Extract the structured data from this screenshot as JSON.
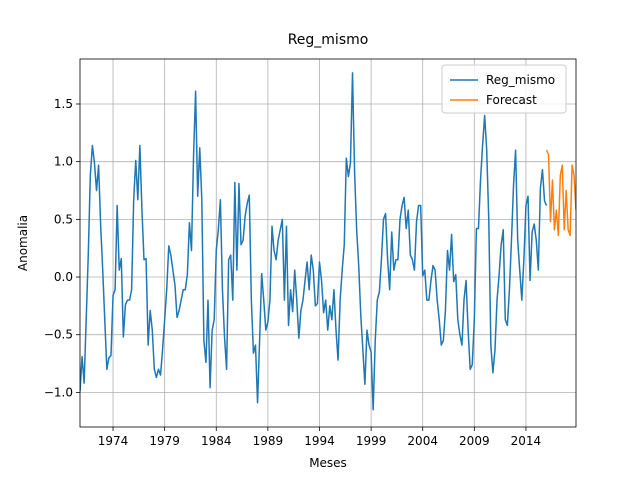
{
  "chart_data": {
    "type": "line",
    "title": "Reg_mismo",
    "x_label": "Meses",
    "y_label": "Anomalia",
    "xlim": [
      1970.8,
      2018.85
    ],
    "xticks": [
      1974,
      1979,
      1984,
      1989,
      1994,
      1999,
      2004,
      2009,
      2014
    ],
    "ylim": [
      -1.3,
      1.89
    ],
    "yticks": [
      {
        "value": -1.0,
        "label": "−1.0"
      },
      {
        "value": -0.5,
        "label": "−0.5"
      },
      {
        "value": 0.0,
        "label": "0.0"
      },
      {
        "value": 0.5,
        "label": "0.5"
      },
      {
        "value": 1.0,
        "label": "1.0"
      },
      {
        "value": 1.5,
        "label": "1.5"
      }
    ],
    "grid": true,
    "legend": "upper right",
    "series": [
      {
        "name": "Reg_mismo",
        "color": "#1f77b4",
        "x": [
          1970.8,
          1971.0,
          1971.2,
          1971.4,
          1971.6,
          1971.8,
          1972.0,
          1972.2,
          1972.4,
          1972.6,
          1972.8,
          1973.0,
          1973.2,
          1973.4,
          1973.6,
          1973.8,
          1974.0,
          1974.2,
          1974.4,
          1974.6,
          1974.8,
          1975.0,
          1975.2,
          1975.4,
          1975.6,
          1975.8,
          1976.0,
          1976.2,
          1976.4,
          1976.6,
          1976.8,
          1977.0,
          1977.2,
          1977.4,
          1977.6,
          1977.8,
          1978.0,
          1978.2,
          1978.4,
          1978.6,
          1978.8,
          1979.0,
          1979.2,
          1979.4,
          1979.6,
          1979.8,
          1980.0,
          1980.2,
          1980.4,
          1980.6,
          1980.8,
          1981.0,
          1981.2,
          1981.4,
          1981.6,
          1981.8,
          1982.0,
          1982.2,
          1982.4,
          1982.6,
          1982.8,
          1983.0,
          1983.2,
          1983.4,
          1983.6,
          1983.8,
          1984.0,
          1984.2,
          1984.4,
          1984.6,
          1984.8,
          1985.0,
          1985.2,
          1985.4,
          1985.6,
          1985.8,
          1986.0,
          1986.2,
          1986.4,
          1986.6,
          1986.8,
          1987.0,
          1987.2,
          1987.4,
          1987.6,
          1987.8,
          1988.0,
          1988.2,
          1988.4,
          1988.6,
          1988.8,
          1989.0,
          1989.2,
          1989.4,
          1989.6,
          1989.8,
          1990.0,
          1990.2,
          1990.4,
          1990.6,
          1990.8,
          1991.0,
          1991.2,
          1991.4,
          1991.6,
          1991.8,
          1992.0,
          1992.2,
          1992.4,
          1992.6,
          1992.8,
          1993.0,
          1993.2,
          1993.4,
          1993.6,
          1993.8,
          1994.0,
          1994.2,
          1994.4,
          1994.6,
          1994.8,
          1995.0,
          1995.2,
          1995.4,
          1995.6,
          1995.8,
          1996.0,
          1996.2,
          1996.4,
          1996.6,
          1996.8,
          1997.0,
          1997.2,
          1997.4,
          1997.6,
          1997.8,
          1998.0,
          1998.2,
          1998.4,
          1998.6,
          1998.8,
          1999.0,
          1999.2,
          1999.4,
          1999.6,
          1999.8,
          2000.0,
          2000.2,
          2000.4,
          2000.6,
          2000.8,
          2001.0,
          2001.2,
          2001.4,
          2001.6,
          2001.8,
          2002.0,
          2002.2,
          2002.4,
          2002.6,
          2002.8,
          2003.0,
          2003.2,
          2003.4,
          2003.6,
          2003.8,
          2004.0,
          2004.2,
          2004.4,
          2004.6,
          2004.8,
          2005.0,
          2005.2,
          2005.4,
          2005.6,
          2005.8,
          2006.0,
          2006.2,
          2006.4,
          2006.6,
          2006.8,
          2007.0,
          2007.2,
          2007.4,
          2007.6,
          2007.8,
          2008.0,
          2008.2,
          2008.4,
          2008.6,
          2008.8,
          2009.0,
          2009.2,
          2009.4,
          2009.6,
          2009.8,
          2010.0,
          2010.2,
          2010.4,
          2010.6,
          2010.8,
          2011.0,
          2011.2,
          2011.4,
          2011.6,
          2011.8,
          2012.0,
          2012.2,
          2012.4,
          2012.6,
          2012.8,
          2013.0,
          2013.2,
          2013.4,
          2013.6,
          2013.8,
          2014.0,
          2014.2,
          2014.4,
          2014.6,
          2014.8,
          2015.0,
          2015.2,
          2015.4,
          2015.6,
          2015.8,
          2016.0
        ],
        "values": [
          -0.99,
          -0.69,
          -0.92,
          -0.37,
          0.19,
          0.88,
          1.14,
          0.99,
          0.75,
          0.97,
          0.45,
          0.06,
          -0.37,
          -0.8,
          -0.7,
          -0.68,
          -0.16,
          -0.11,
          0.62,
          0.06,
          0.16,
          -0.52,
          -0.24,
          -0.2,
          -0.2,
          -0.11,
          0.67,
          1.01,
          0.67,
          1.14,
          0.58,
          0.15,
          0.16,
          -0.59,
          -0.29,
          -0.46,
          -0.8,
          -0.87,
          -0.8,
          -0.85,
          -0.63,
          -0.37,
          -0.11,
          0.27,
          0.19,
          0.06,
          -0.07,
          -0.35,
          -0.29,
          -0.2,
          -0.11,
          -0.11,
          0.02,
          0.47,
          0.23,
          1.05,
          1.61,
          0.7,
          1.12,
          0.67,
          -0.55,
          -0.74,
          -0.2,
          -0.96,
          -0.46,
          -0.37,
          0.23,
          0.41,
          0.67,
          -0.11,
          -0.52,
          -0.8,
          0.15,
          0.19,
          -0.2,
          0.82,
          0.06,
          0.81,
          0.28,
          0.32,
          0.53,
          0.64,
          0.71,
          -0.2,
          -0.66,
          -0.59,
          -1.09,
          -0.55,
          0.03,
          -0.2,
          -0.46,
          -0.39,
          -0.2,
          0.44,
          0.23,
          0.15,
          0.32,
          0.41,
          0.5,
          -0.2,
          0.44,
          -0.42,
          -0.11,
          -0.3,
          0.06,
          -0.2,
          -0.53,
          -0.29,
          -0.2,
          -0.03,
          0.13,
          -0.11,
          0.19,
          0.06,
          -0.25,
          -0.23,
          0.13,
          -0.03,
          -0.31,
          -0.2,
          -0.46,
          -0.25,
          -0.37,
          -0.11,
          -0.46,
          -0.72,
          -0.2,
          0.06,
          0.28,
          1.03,
          0.87,
          0.99,
          1.77,
          0.91,
          0.41,
          0.1,
          -0.33,
          -0.63,
          -0.93,
          -0.46,
          -0.59,
          -0.65,
          -1.15,
          -0.55,
          -0.2,
          -0.13,
          0.15,
          0.5,
          0.55,
          0.15,
          -0.11,
          0.39,
          0.06,
          0.15,
          0.15,
          0.5,
          0.62,
          0.69,
          0.42,
          0.58,
          0.19,
          0.15,
          0.06,
          0.48,
          0.62,
          0.62,
          0.01,
          0.06,
          -0.2,
          -0.2,
          -0.03,
          0.1,
          0.06,
          -0.2,
          -0.37,
          -0.59,
          -0.55,
          -0.29,
          0.23,
          0.06,
          0.37,
          -0.04,
          0.02,
          -0.37,
          -0.5,
          -0.59,
          -0.2,
          -0.03,
          -0.46,
          -0.8,
          -0.76,
          -0.37,
          0.42,
          0.42,
          0.84,
          1.14,
          1.4,
          1.1,
          0.5,
          -0.59,
          -0.83,
          -0.63,
          -0.2,
          0.02,
          0.28,
          0.41,
          -0.37,
          -0.42,
          -0.11,
          0.32,
          0.8,
          1.1,
          0.32,
          0.06,
          -0.2,
          0.15,
          0.62,
          0.7,
          -0.03,
          0.39,
          0.46,
          0.32,
          0.06,
          0.77,
          0.93,
          0.66,
          0.62
        ]
      },
      {
        "name": "Forecast",
        "color": "#ff7f0e",
        "x": [
          2016.0,
          2016.19,
          2016.38,
          2016.57,
          2016.76,
          2016.95,
          2017.14,
          2017.33,
          2017.52,
          2017.71,
          2017.9,
          2018.09,
          2018.28,
          2018.47,
          2018.66,
          2018.85
        ],
        "values": [
          1.1,
          1.06,
          0.48,
          0.84,
          0.41,
          0.58,
          0.36,
          0.88,
          0.97,
          0.41,
          0.75,
          0.41,
          0.36,
          0.97,
          0.88,
          0.58
        ]
      }
    ]
  }
}
